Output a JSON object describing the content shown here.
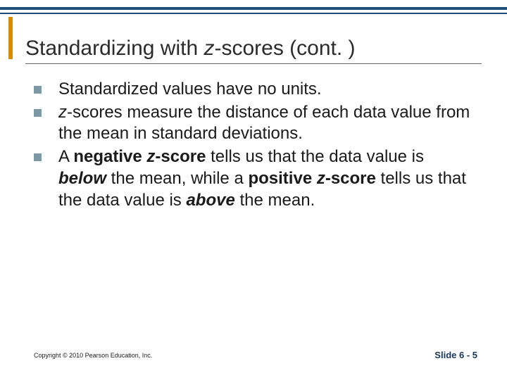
{
  "colors": {
    "top_border": "#1f4e79",
    "left_accent": "#d98c00",
    "bullet_marker": "#7c9aa6",
    "title_text": "#2b2b2b",
    "body_text": "#1a1a1a",
    "footer_slide_text": "#17365d",
    "title_underline": "#666666",
    "background": "#ffffff"
  },
  "typography": {
    "title_fontsize": 30,
    "body_fontsize": 24,
    "footer_copy_fontsize": 9,
    "footer_slide_fontsize": 13,
    "font_family": "Arial"
  },
  "title": {
    "prefix": "Standardizing with ",
    "z": "z",
    "suffix": "-scores (cont. )"
  },
  "bullets": [
    {
      "html": "Standardized values have no units."
    },
    {
      "html": "<span class=\"z\">z</span>-scores measure the distance of each data value from the mean in standard deviations."
    },
    {
      "html": "A <b>negative <span class=\"z\">z</span>-score</b> tells us that the data value is <b><i>below</i></b> the mean, while a <b>positive <span class=\"z\">z</span>-score</b> tells us that the data value is <b><i>above</i></b> the mean."
    }
  ],
  "footer": {
    "copyright": "Copyright © 2010 Pearson Education, Inc.",
    "slide_label": "Slide 6 - 5"
  }
}
